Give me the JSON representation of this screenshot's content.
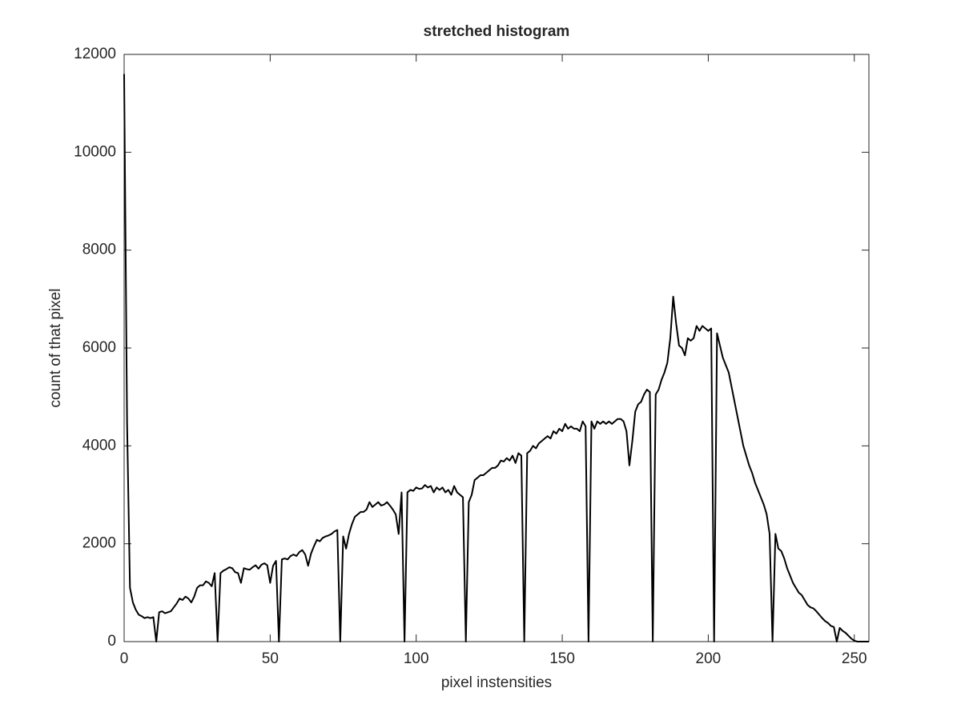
{
  "chart_data": {
    "type": "line",
    "title": "stretched histogram",
    "x_label": "pixel instensities",
    "y_label": "count of that pixel",
    "x": [
      0,
      1,
      2,
      3,
      4,
      5,
      6,
      7,
      8,
      9,
      10,
      11,
      12,
      13,
      14,
      15,
      16,
      17,
      18,
      19,
      20,
      21,
      22,
      23,
      24,
      25,
      26,
      27,
      28,
      29,
      30,
      31,
      32,
      33,
      34,
      35,
      36,
      37,
      38,
      39,
      40,
      41,
      42,
      43,
      44,
      45,
      46,
      47,
      48,
      49,
      50,
      51,
      52,
      53,
      54,
      55,
      56,
      57,
      58,
      59,
      60,
      61,
      62,
      63,
      64,
      65,
      66,
      67,
      68,
      69,
      70,
      71,
      72,
      73,
      74,
      75,
      76,
      77,
      78,
      79,
      80,
      81,
      82,
      83,
      84,
      85,
      86,
      87,
      88,
      89,
      90,
      91,
      92,
      93,
      94,
      95,
      96,
      97,
      98,
      99,
      100,
      101,
      102,
      103,
      104,
      105,
      106,
      107,
      108,
      109,
      110,
      111,
      112,
      113,
      114,
      115,
      116,
      117,
      118,
      119,
      120,
      121,
      122,
      123,
      124,
      125,
      126,
      127,
      128,
      129,
      130,
      131,
      132,
      133,
      134,
      135,
      136,
      137,
      138,
      139,
      140,
      141,
      142,
      143,
      144,
      145,
      146,
      147,
      148,
      149,
      150,
      151,
      152,
      153,
      154,
      155,
      156,
      157,
      158,
      159,
      160,
      161,
      162,
      163,
      164,
      165,
      166,
      167,
      168,
      169,
      170,
      171,
      172,
      173,
      174,
      175,
      176,
      177,
      178,
      179,
      180,
      181,
      182,
      183,
      184,
      185,
      186,
      187,
      188,
      189,
      190,
      191,
      192,
      193,
      194,
      195,
      196,
      197,
      198,
      199,
      200,
      201,
      202,
      203,
      204,
      205,
      206,
      207,
      208,
      209,
      210,
      211,
      212,
      213,
      214,
      215,
      216,
      217,
      218,
      219,
      220,
      221,
      222,
      223,
      224,
      225,
      226,
      227,
      228,
      229,
      230,
      231,
      232,
      233,
      234,
      235,
      236,
      237,
      238,
      239,
      240,
      241,
      242,
      243,
      244,
      245,
      246,
      247,
      248,
      249,
      250,
      251,
      252,
      253,
      254,
      255
    ],
    "series": [
      {
        "color": "#000000",
        "values": [
          11600,
          4500,
          1100,
          800,
          650,
          550,
          520,
          480,
          500,
          480,
          500,
          0,
          600,
          620,
          580,
          600,
          620,
          700,
          780,
          880,
          850,
          920,
          880,
          800,
          920,
          1100,
          1150,
          1150,
          1230,
          1200,
          1130,
          1400,
          0,
          1400,
          1450,
          1480,
          1520,
          1500,
          1420,
          1400,
          1200,
          1500,
          1480,
          1470,
          1520,
          1560,
          1490,
          1570,
          1600,
          1560,
          1200,
          1550,
          1650,
          0,
          1680,
          1700,
          1680,
          1750,
          1780,
          1750,
          1830,
          1870,
          1780,
          1550,
          1800,
          1950,
          2080,
          2050,
          2120,
          2150,
          2170,
          2200,
          2250,
          2280,
          0,
          2150,
          1900,
          2200,
          2400,
          2550,
          2600,
          2650,
          2650,
          2700,
          2850,
          2750,
          2800,
          2850,
          2780,
          2800,
          2850,
          2780,
          2700,
          2600,
          2200,
          3050,
          0,
          3050,
          3100,
          3080,
          3150,
          3120,
          3130,
          3200,
          3150,
          3180,
          3050,
          3150,
          3100,
          3150,
          3050,
          3100,
          3000,
          3180,
          3050,
          3000,
          2950,
          0,
          2850,
          3000,
          3300,
          3350,
          3400,
          3400,
          3450,
          3500,
          3550,
          3550,
          3600,
          3700,
          3680,
          3750,
          3700,
          3800,
          3650,
          3850,
          3800,
          0,
          3850,
          3900,
          4000,
          3950,
          4050,
          4100,
          4150,
          4200,
          4150,
          4300,
          4250,
          4350,
          4300,
          4450,
          4350,
          4400,
          4350,
          4350,
          4300,
          4500,
          4400,
          0,
          4500,
          4350,
          4500,
          4450,
          4500,
          4450,
          4500,
          4450,
          4500,
          4550,
          4550,
          4500,
          4300,
          3600,
          4100,
          4700,
          4850,
          4900,
          5050,
          5150,
          5100,
          0,
          5050,
          5150,
          5350,
          5500,
          5700,
          6200,
          7050,
          6500,
          6050,
          6000,
          5850,
          6200,
          6150,
          6200,
          6450,
          6350,
          6450,
          6400,
          6350,
          6400,
          0,
          6300,
          6050,
          5800,
          5650,
          5500,
          5200,
          4900,
          4600,
          4300,
          4000,
          3800,
          3600,
          3450,
          3250,
          3100,
          2950,
          2800,
          2600,
          2200,
          0,
          2200,
          1900,
          1850,
          1700,
          1500,
          1350,
          1200,
          1100,
          1000,
          950,
          850,
          750,
          700,
          680,
          620,
          550,
          480,
          420,
          380,
          320,
          300,
          0,
          280,
          220,
          180,
          120,
          60,
          20,
          0,
          0,
          0,
          0,
          0
        ]
      }
    ],
    "xlim": [
      0,
      255
    ],
    "xticks": [
      0,
      50,
      100,
      150,
      200,
      250
    ],
    "ylim": [
      0,
      12000
    ],
    "yticks": [
      0,
      2000,
      4000,
      6000,
      8000,
      10000,
      12000
    ]
  }
}
